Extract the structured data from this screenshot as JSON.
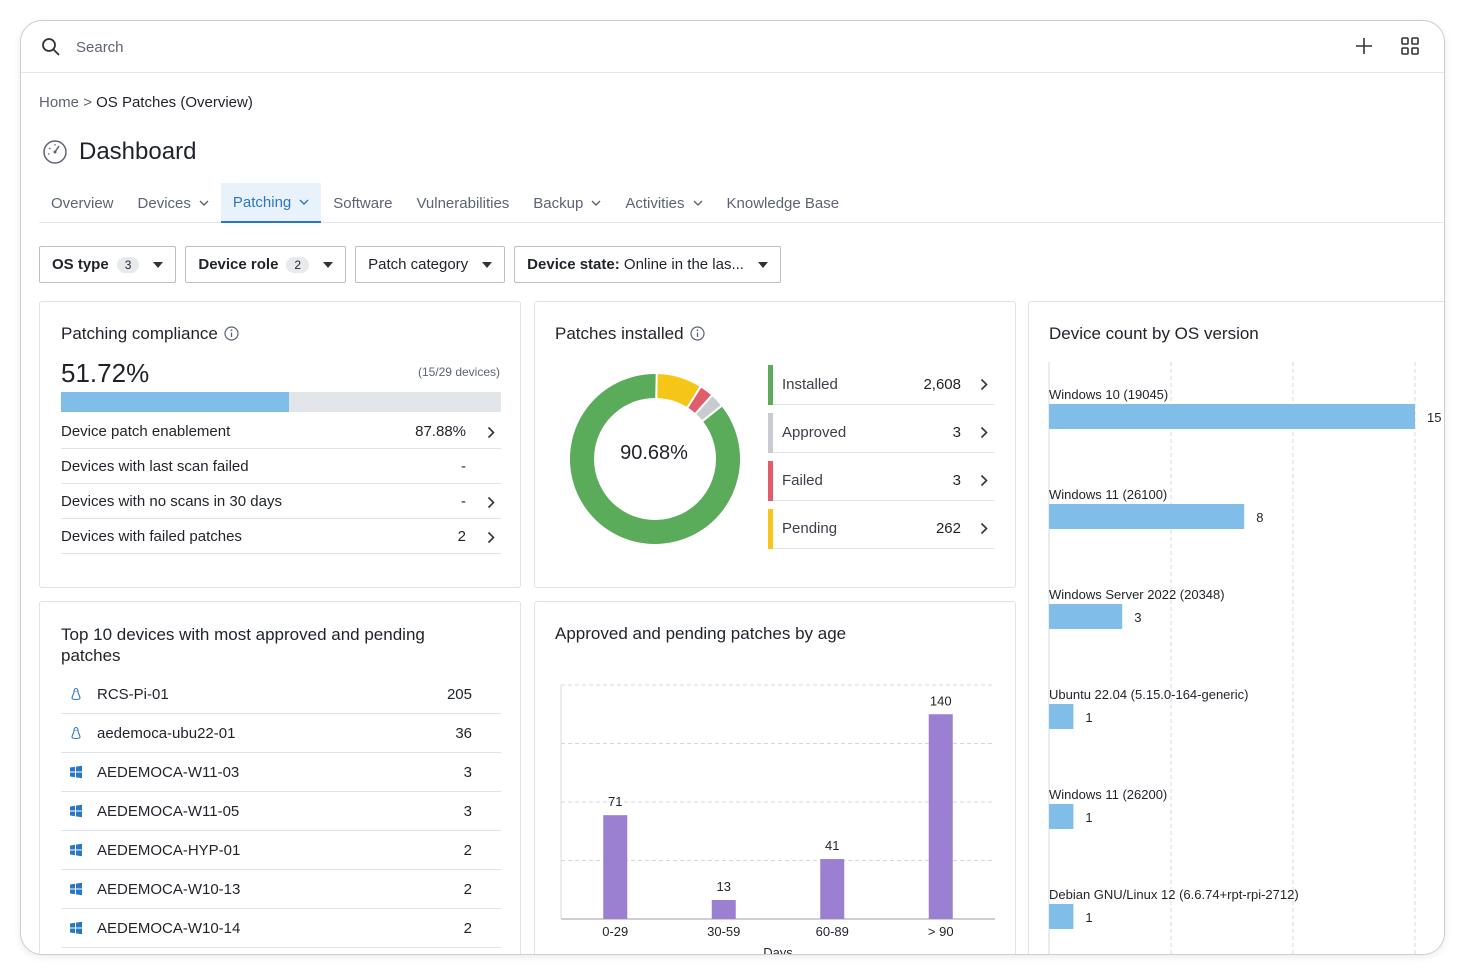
{
  "search": {
    "placeholder": "Search"
  },
  "breadcrumb": {
    "home": "Home",
    "separator": ">",
    "current": "OS Patches (Overview)"
  },
  "page_title": "Dashboard",
  "tabs": [
    {
      "label": "Overview",
      "dropdown": false,
      "active": false
    },
    {
      "label": "Devices",
      "dropdown": true,
      "active": false
    },
    {
      "label": "Patching",
      "dropdown": true,
      "active": true
    },
    {
      "label": "Software",
      "dropdown": false,
      "active": false
    },
    {
      "label": "Vulnerabilities",
      "dropdown": false,
      "active": false
    },
    {
      "label": "Backup",
      "dropdown": true,
      "active": false
    },
    {
      "label": "Activities",
      "dropdown": true,
      "active": false
    },
    {
      "label": "Knowledge Base",
      "dropdown": false,
      "active": false
    }
  ],
  "filters": {
    "os_type": {
      "label": "OS type",
      "count": "3"
    },
    "device_role": {
      "label": "Device role",
      "count": "2"
    },
    "patch_category": {
      "label": "Patch category"
    },
    "device_state": {
      "label": "Device state:",
      "value": "Online in the las..."
    }
  },
  "compliance": {
    "title": "Patching compliance",
    "percent": "51.72%",
    "devices": "(15/29 devices)",
    "fill_fraction": 0.5172,
    "rows": [
      {
        "label": "Device patch enablement",
        "value": "87.88%",
        "arrow": true
      },
      {
        "label": "Devices with last scan failed",
        "value": "-",
        "arrow": false
      },
      {
        "label": "Devices with no scans in 30 days",
        "value": "-",
        "arrow": true
      },
      {
        "label": "Devices with failed patches",
        "value": "2",
        "arrow": true
      }
    ]
  },
  "patches_installed": {
    "title": "Patches installed",
    "center": "90.68%",
    "legend": [
      {
        "label": "Installed",
        "value": "2,608",
        "count": 2608,
        "color": "#5aab5a"
      },
      {
        "label": "Approved",
        "value": "3",
        "count": 3,
        "color": "#c8cbcf"
      },
      {
        "label": "Failed",
        "value": "3",
        "count": 3,
        "color": "#e25c6b"
      },
      {
        "label": "Pending",
        "value": "262",
        "count": 262,
        "color": "#f5c518"
      }
    ]
  },
  "device_count": {
    "title": "Device count by OS version",
    "bars": [
      {
        "label": "Windows 10 (19045)",
        "value": 15
      },
      {
        "label": "Windows 11 (26100)",
        "value": 8
      },
      {
        "label": "Windows Server 2022 (20348)",
        "value": 3
      },
      {
        "label": "Ubuntu 22.04 (5.15.0-164-generic)",
        "value": 1
      },
      {
        "label": "Windows 11 (26200)",
        "value": 1
      },
      {
        "label": "Debian GNU/Linux 12 (6.6.74+rpt-rpi-2712)",
        "value": 1
      }
    ],
    "bar_color": "#80bde9"
  },
  "top_devices": {
    "title_line1": "Top 10 devices with most approved and pending",
    "title_line2": "patches",
    "rows": [
      {
        "name": "RCS-Pi-01",
        "count": "205",
        "os": "linux-icon"
      },
      {
        "name": "aedemoca-ubu22-01",
        "count": "36",
        "os": "linux-icon"
      },
      {
        "name": "AEDEMOCA-W11-03",
        "count": "3",
        "os": "windows-icon"
      },
      {
        "name": "AEDEMOCA-W11-05",
        "count": "3",
        "os": "windows-icon"
      },
      {
        "name": "AEDEMOCA-HYP-01",
        "count": "2",
        "os": "windows-icon"
      },
      {
        "name": "AEDEMOCA-W10-13",
        "count": "2",
        "os": "windows-icon"
      },
      {
        "name": "AEDEMOCA-W10-14",
        "count": "2",
        "os": "windows-icon"
      }
    ]
  },
  "chart_data": {
    "type": "bar",
    "title": "Approved and pending patches by age",
    "categories": [
      "0-29",
      "30-59",
      "60-89",
      "> 90"
    ],
    "values": [
      71,
      13,
      41,
      140
    ],
    "xlabel": "Days",
    "ylabel": "",
    "ylim": [
      0,
      160
    ],
    "grid": true,
    "color": "#9b7fd1"
  }
}
